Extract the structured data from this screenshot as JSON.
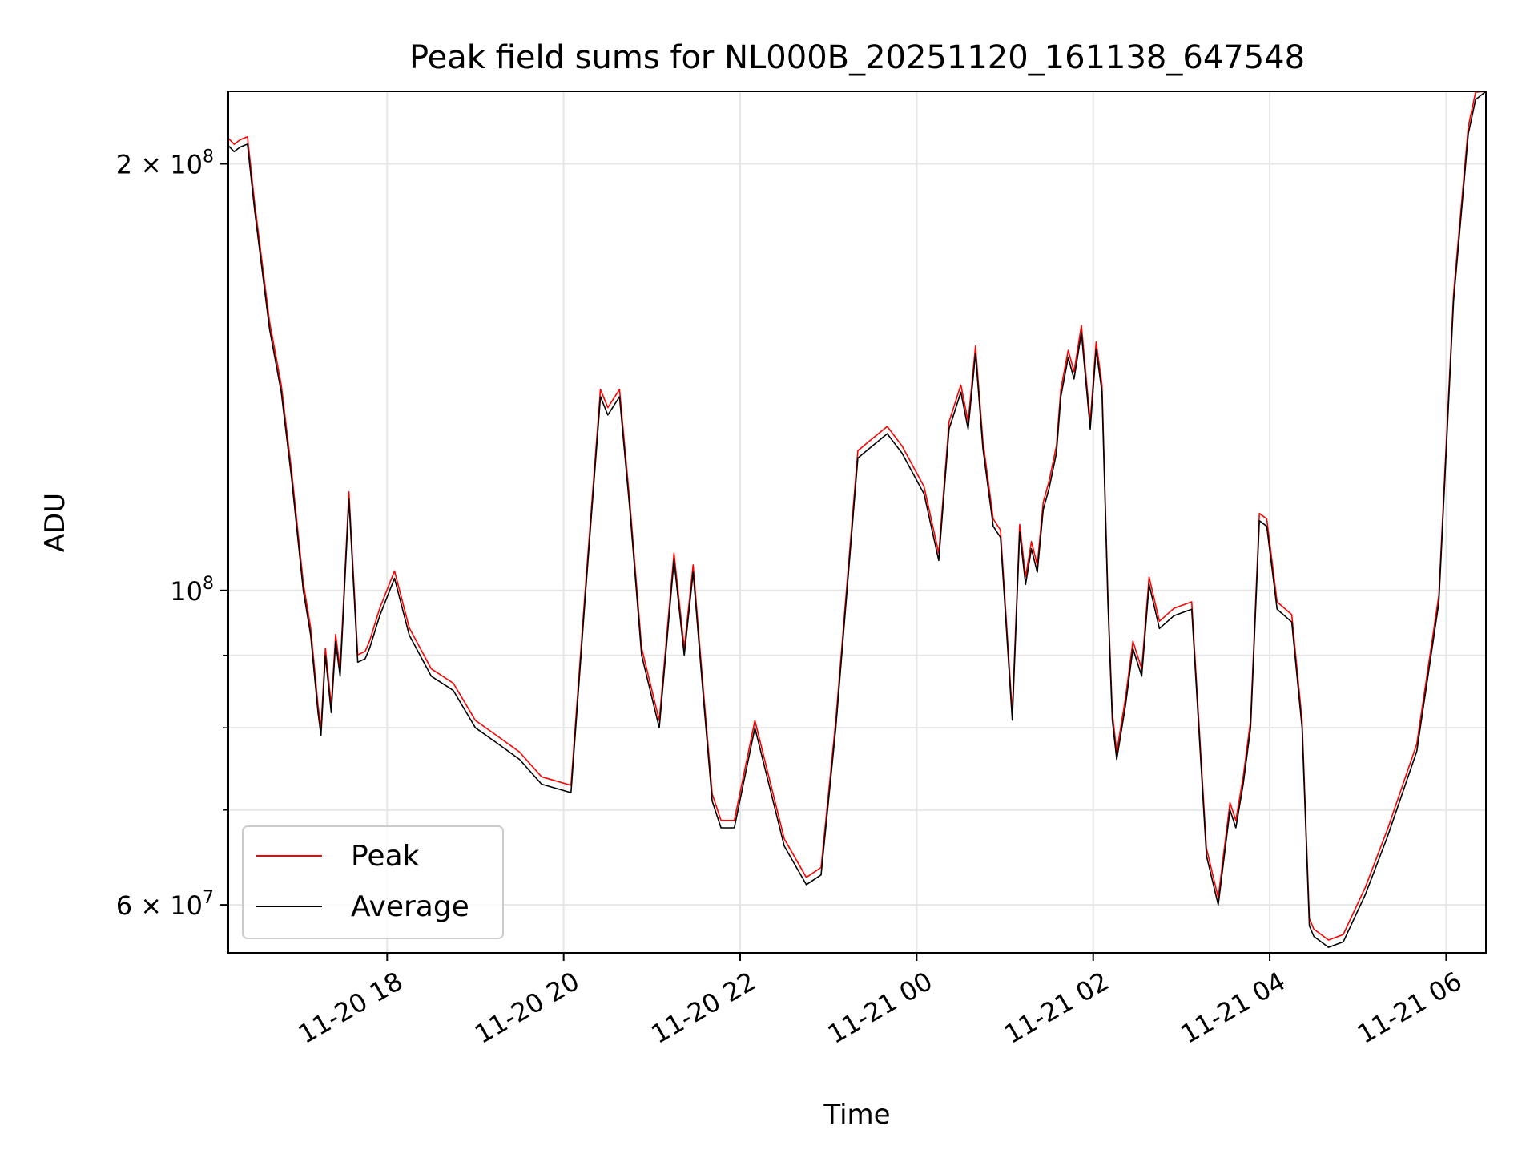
{
  "chart_data": {
    "type": "line",
    "title": "Peak field sums for NL000B_20251120_161138_647548",
    "xlabel": "Time",
    "ylabel": "ADU",
    "y_scale": "log",
    "grid": true,
    "legend_position": "lower-left",
    "x_range": [
      "2025-11-20 16:12",
      "2025-11-21 06:27"
    ],
    "y_range": [
      55500000,
      225000000
    ],
    "x_ticks": [
      {
        "label": "11-20 18",
        "value": "2025-11-20 18:00"
      },
      {
        "label": "11-20 20",
        "value": "2025-11-20 20:00"
      },
      {
        "label": "11-20 22",
        "value": "2025-11-20 22:00"
      },
      {
        "label": "11-21 00",
        "value": "2025-11-21 00:00"
      },
      {
        "label": "11-21 02",
        "value": "2025-11-21 02:00"
      },
      {
        "label": "11-21 04",
        "value": "2025-11-21 04:00"
      },
      {
        "label": "11-21 06",
        "value": "2025-11-21 06:00"
      }
    ],
    "y_ticks": [
      {
        "mantissa": "2",
        "exponent": "8",
        "value": 200000000
      },
      {
        "mantissa": "",
        "exponent": "8",
        "value": 100000000
      },
      {
        "mantissa": "6",
        "exponent": "7",
        "value": 60000000
      }
    ],
    "y_minor_ticks": [
      70000000,
      80000000,
      90000000
    ],
    "series": [
      {
        "name": "Peak",
        "color": "#ff0000",
        "offset_ratio": 1.012
      },
      {
        "name": "Average",
        "color": "#000000",
        "offset_ratio": 1.0
      }
    ],
    "x": [
      "2025-11-20 16:12",
      "2025-11-20 16:16",
      "2025-11-20 16:20",
      "2025-11-20 16:25",
      "2025-11-20 16:30",
      "2025-11-20 16:40",
      "2025-11-20 16:48",
      "2025-11-20 16:55",
      "2025-11-20 17:03",
      "2025-11-20 17:08",
      "2025-11-20 17:13",
      "2025-11-20 17:15",
      "2025-11-20 17:18",
      "2025-11-20 17:22",
      "2025-11-20 17:25",
      "2025-11-20 17:28",
      "2025-11-20 17:34",
      "2025-11-20 17:40",
      "2025-11-20 17:45",
      "2025-11-20 17:48",
      "2025-11-20 17:55",
      "2025-11-20 18:05",
      "2025-11-20 18:15",
      "2025-11-20 18:30",
      "2025-11-20 18:45",
      "2025-11-20 19:00",
      "2025-11-20 19:15",
      "2025-11-20 19:30",
      "2025-11-20 19:45",
      "2025-11-20 20:05",
      "2025-11-20 20:15",
      "2025-11-20 20:25",
      "2025-11-20 20:30",
      "2025-11-20 20:38",
      "2025-11-20 20:45",
      "2025-11-20 20:53",
      "2025-11-20 21:05",
      "2025-11-20 21:15",
      "2025-11-20 21:22",
      "2025-11-20 21:28",
      "2025-11-20 21:35",
      "2025-11-20 21:41",
      "2025-11-20 21:47",
      "2025-11-20 21:56",
      "2025-11-20 22:10",
      "2025-11-20 22:30",
      "2025-11-20 22:45",
      "2025-11-20 22:55",
      "2025-11-20 23:05",
      "2025-11-20 23:20",
      "2025-11-20 23:28",
      "2025-11-20 23:40",
      "2025-11-20 23:50",
      "2025-11-21 00:05",
      "2025-11-21 00:15",
      "2025-11-21 00:22",
      "2025-11-21 00:30",
      "2025-11-21 00:35",
      "2025-11-21 00:40",
      "2025-11-21 00:45",
      "2025-11-21 00:52",
      "2025-11-21 00:57",
      "2025-11-21 01:05",
      "2025-11-21 01:10",
      "2025-11-21 01:14",
      "2025-11-21 01:18",
      "2025-11-21 01:22",
      "2025-11-21 01:26",
      "2025-11-21 01:30",
      "2025-11-21 01:35",
      "2025-11-21 01:38",
      "2025-11-21 01:43",
      "2025-11-21 01:47",
      "2025-11-21 01:52",
      "2025-11-21 01:58",
      "2025-11-21 02:02",
      "2025-11-21 02:06",
      "2025-11-21 02:10",
      "2025-11-21 02:13",
      "2025-11-21 02:16",
      "2025-11-21 02:22",
      "2025-11-21 02:27",
      "2025-11-21 02:33",
      "2025-11-21 02:38",
      "2025-11-21 02:45",
      "2025-11-21 02:55",
      "2025-11-21 03:07",
      "2025-11-21 03:17",
      "2025-11-21 03:25",
      "2025-11-21 03:33",
      "2025-11-21 03:37",
      "2025-11-21 03:42",
      "2025-11-21 03:47",
      "2025-11-21 03:53",
      "2025-11-21 03:58",
      "2025-11-21 04:05",
      "2025-11-21 04:15",
      "2025-11-21 04:22",
      "2025-11-21 04:27",
      "2025-11-21 04:30",
      "2025-11-21 04:40",
      "2025-11-21 04:50",
      "2025-11-21 05:05",
      "2025-11-21 05:20",
      "2025-11-21 05:40",
      "2025-11-21 05:55",
      "2025-11-21 06:05",
      "2025-11-21 06:15",
      "2025-11-21 06:20",
      "2025-11-21 06:27"
    ],
    "values": [
      206000000,
      204000000,
      205500000,
      206500000,
      185000000,
      153000000,
      138000000,
      120000000,
      100000000,
      93000000,
      82000000,
      79000000,
      90000000,
      82000000,
      92000000,
      87000000,
      116000000,
      89000000,
      89500000,
      91000000,
      96000000,
      102000000,
      93000000,
      87000000,
      85000000,
      80000000,
      78000000,
      76000000,
      73000000,
      72000000,
      100000000,
      137000000,
      133000000,
      137000000,
      114000000,
      90000000,
      80000000,
      105000000,
      90000000,
      103000000,
      84000000,
      71000000,
      68000000,
      68000000,
      80000000,
      66000000,
      62000000,
      63000000,
      80000000,
      124000000,
      126000000,
      129000000,
      125000000,
      117000000,
      105000000,
      130000000,
      138000000,
      130000000,
      147000000,
      126000000,
      111000000,
      109000000,
      81000000,
      110000000,
      101000000,
      107000000,
      103000000,
      114000000,
      118000000,
      125000000,
      137000000,
      146000000,
      141000000,
      152000000,
      130000000,
      148000000,
      138000000,
      98000000,
      81000000,
      76000000,
      83000000,
      91000000,
      87000000,
      101000000,
      94000000,
      96000000,
      97000000,
      65000000,
      60000000,
      70000000,
      68000000,
      73000000,
      80000000,
      112000000,
      111000000,
      97000000,
      95000000,
      80000000,
      58000000,
      57000000,
      56000000,
      56500000,
      61000000,
      67000000,
      77000000,
      98000000,
      160000000,
      210000000,
      222000000,
      225000000
    ]
  }
}
